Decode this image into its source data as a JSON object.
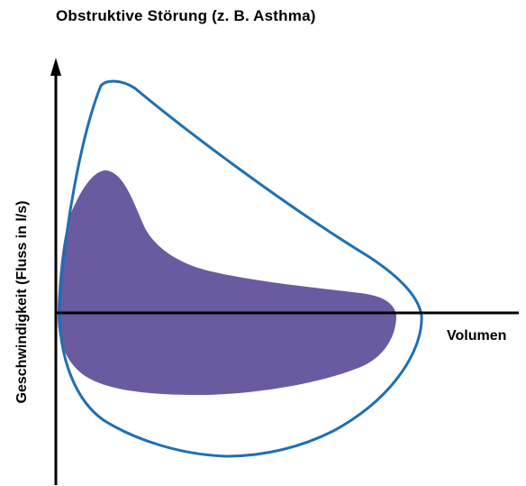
{
  "title": "Obstruktive Störung (z. B. Asthma)",
  "axis": {
    "ylabel": "Geschwindigkeit (Fluss in l/s)",
    "xlabel": "Volumen"
  },
  "colors": {
    "normal_curve": "#1f6fb2",
    "obstructive_curve": "#6a5a9f",
    "axis": "#000000"
  }
}
